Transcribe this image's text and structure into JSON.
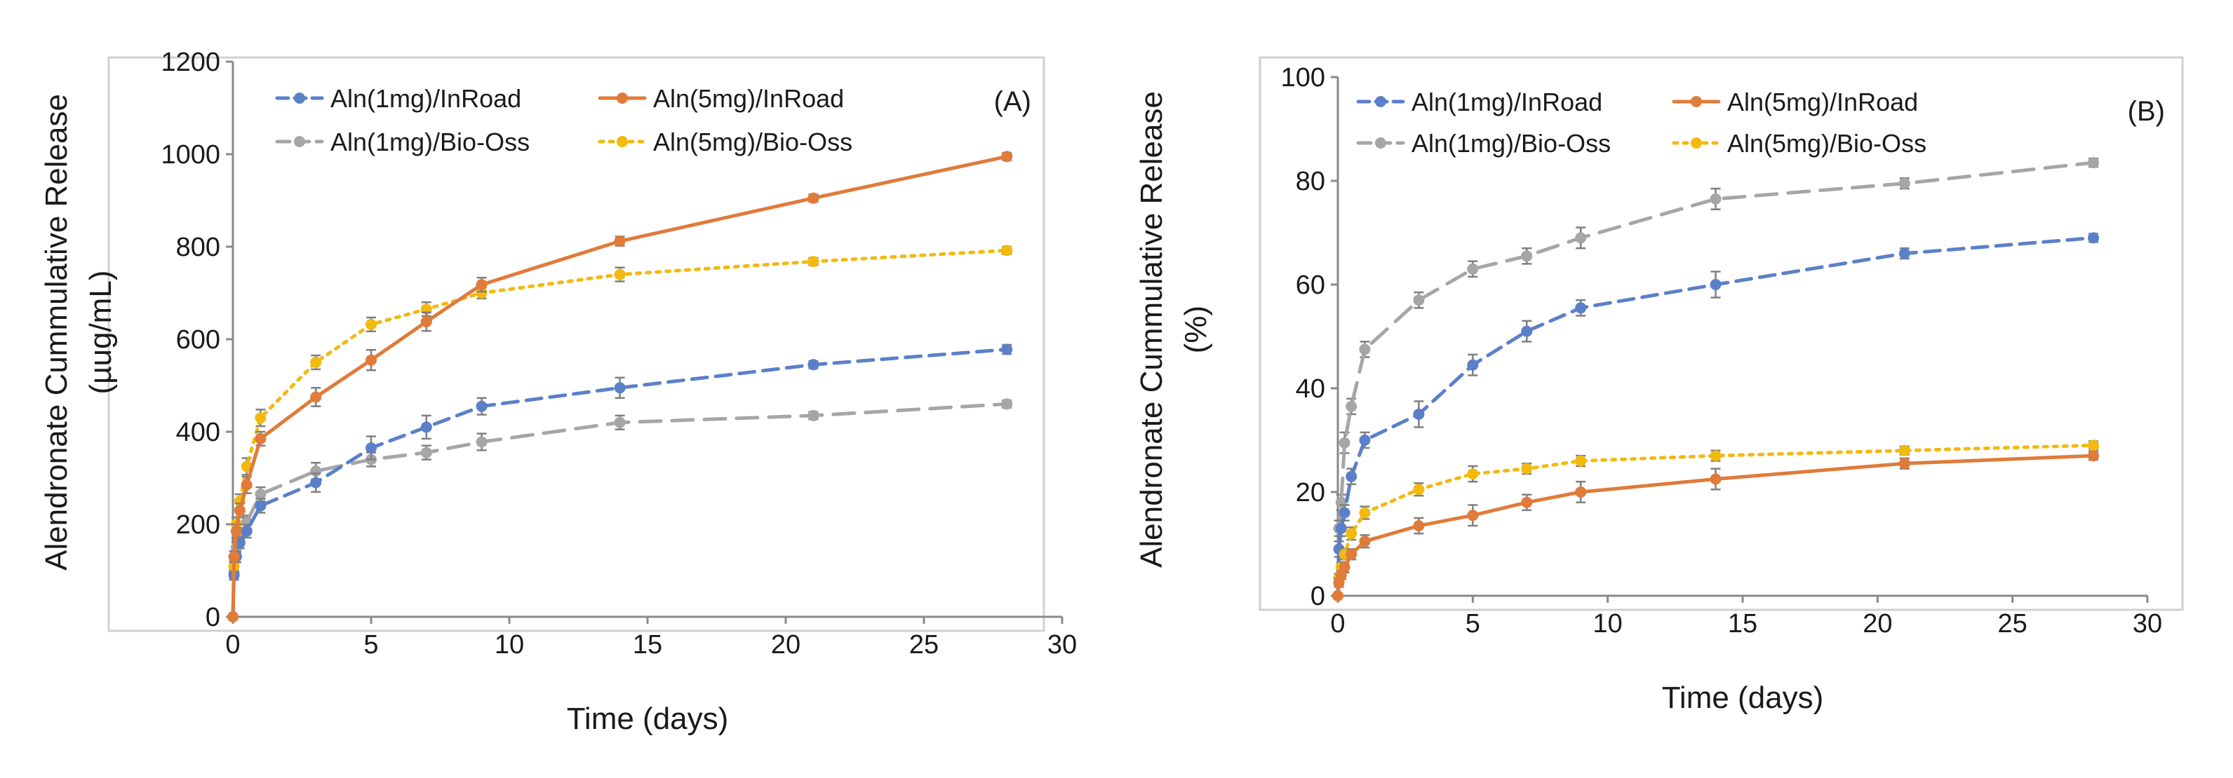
{
  "chart_data": [
    {
      "type": "line",
      "panel_label": "(A)",
      "xlabel": "Time (days)",
      "ylabel": "Alendronate Cummulative Release",
      "ylabel_unit": "(µug/mL)",
      "xlim": [
        0,
        30
      ],
      "ylim": [
        0,
        1200
      ],
      "xticks": [
        0,
        5,
        10,
        15,
        20,
        25,
        30
      ],
      "yticks": [
        0,
        200,
        400,
        600,
        800,
        1000,
        1200
      ],
      "grid": false,
      "legend_position": "top",
      "series": [
        {
          "name": "Aln(1mg)/InRoad",
          "color": "#5b80c9",
          "dash": "dashed",
          "x": [
            0,
            0.04,
            0.125,
            0.25,
            0.5,
            1,
            3,
            5,
            7,
            9,
            14,
            21,
            28
          ],
          "y": [
            0,
            90,
            130,
            160,
            185,
            240,
            290,
            365,
            410,
            455,
            495,
            545,
            578
          ],
          "err": [
            0,
            10,
            12,
            12,
            14,
            15,
            20,
            25,
            25,
            18,
            22,
            8,
            10
          ]
        },
        {
          "name": "Aln(5mg)/InRoad",
          "color": "#e07b3a",
          "dash": "solid",
          "x": [
            0,
            0.04,
            0.125,
            0.25,
            0.5,
            1,
            3,
            5,
            7,
            9,
            14,
            21,
            28
          ],
          "y": [
            0,
            130,
            185,
            230,
            285,
            385,
            475,
            555,
            638,
            718,
            812,
            905,
            995
          ],
          "err": [
            0,
            12,
            15,
            15,
            18,
            15,
            20,
            22,
            20,
            15,
            10,
            8,
            8
          ]
        },
        {
          "name": "Aln(1mg)/Bio-Oss",
          "color": "#a6a6a6",
          "dash": "longdash",
          "x": [
            0,
            0.04,
            0.125,
            0.25,
            0.5,
            1,
            3,
            5,
            7,
            9,
            14,
            21,
            28
          ],
          "y": [
            0,
            95,
            150,
            180,
            205,
            265,
            315,
            340,
            355,
            378,
            420,
            435,
            460
          ],
          "err": [
            0,
            10,
            12,
            12,
            14,
            15,
            18,
            15,
            15,
            18,
            15,
            8,
            8
          ]
        },
        {
          "name": "Aln(5mg)/Bio-Oss",
          "color": "#f2b90f",
          "dash": "dotted",
          "x": [
            0,
            0.04,
            0.125,
            0.25,
            0.5,
            1,
            3,
            5,
            7,
            9,
            14,
            21,
            28
          ],
          "y": [
            0,
            110,
            200,
            250,
            325,
            430,
            550,
            632,
            665,
            700,
            740,
            768,
            792
          ],
          "err": [
            0,
            12,
            15,
            15,
            18,
            18,
            15,
            15,
            15,
            12,
            15,
            8,
            8
          ]
        }
      ],
      "legend_order": [
        0,
        1,
        2,
        3
      ]
    },
    {
      "type": "line",
      "panel_label": "(B)",
      "xlabel": "Time (days)",
      "ylabel": "Alendronate Cummulative Release",
      "ylabel_unit": "(%)",
      "xlim": [
        0,
        30
      ],
      "ylim": [
        0,
        100
      ],
      "xticks": [
        0,
        5,
        10,
        15,
        20,
        25,
        30
      ],
      "yticks": [
        0,
        20,
        40,
        60,
        80,
        100
      ],
      "grid": false,
      "legend_position": "top",
      "series": [
        {
          "name": "Aln(1mg)/InRoad",
          "color": "#5b80c9",
          "dash": "dashed",
          "x": [
            0,
            0.04,
            0.125,
            0.25,
            0.5,
            1,
            3,
            5,
            7,
            9,
            14,
            21,
            28
          ],
          "y": [
            0,
            9,
            13,
            16,
            23,
            30,
            35,
            44.5,
            51,
            55.5,
            60,
            66,
            69
          ],
          "err": [
            0,
            1.5,
            1.5,
            1.5,
            1.5,
            1.5,
            2.5,
            2,
            2,
            1.5,
            2.5,
            1,
            0.8
          ]
        },
        {
          "name": "Aln(5mg)/InRoad",
          "color": "#e07b3a",
          "dash": "solid",
          "x": [
            0,
            0.04,
            0.125,
            0.25,
            0.5,
            1,
            3,
            5,
            7,
            9,
            14,
            21,
            28
          ],
          "y": [
            0,
            2.5,
            4,
            5.5,
            8,
            10.5,
            13.5,
            15.5,
            18,
            20,
            22.5,
            25.5,
            27
          ],
          "err": [
            0,
            0.8,
            0.8,
            1,
            1,
            1.2,
            1.5,
            2,
            1.5,
            2,
            2,
            1,
            0.8
          ]
        },
        {
          "name": "Aln(1mg)/Bio-Oss",
          "color": "#a6a6a6",
          "dash": "longdash",
          "x": [
            0,
            0.04,
            0.125,
            0.25,
            0.5,
            1,
            3,
            5,
            7,
            9,
            14,
            21,
            28
          ],
          "y": [
            0,
            13,
            18,
            29.5,
            36.5,
            47.5,
            57,
            63,
            65.5,
            69,
            76.5,
            79.5,
            83.5
          ],
          "err": [
            0,
            1.5,
            1.5,
            2,
            1.5,
            1.5,
            1.5,
            1.5,
            1.5,
            2,
            2,
            1,
            0.8
          ]
        },
        {
          "name": "Aln(5mg)/Bio-Oss",
          "color": "#f2b90f",
          "dash": "dotted",
          "x": [
            0,
            0.04,
            0.125,
            0.25,
            0.5,
            1,
            3,
            5,
            7,
            9,
            14,
            21,
            28
          ],
          "y": [
            0,
            3.5,
            5.5,
            8,
            12,
            16,
            20.5,
            23.5,
            24.5,
            26,
            27,
            28,
            29
          ],
          "err": [
            0,
            0.8,
            0.8,
            1,
            1.2,
            1.2,
            1.2,
            1.5,
            1,
            1,
            1,
            0.8,
            0.8
          ]
        }
      ],
      "legend_order": [
        0,
        1,
        2,
        3
      ]
    }
  ]
}
